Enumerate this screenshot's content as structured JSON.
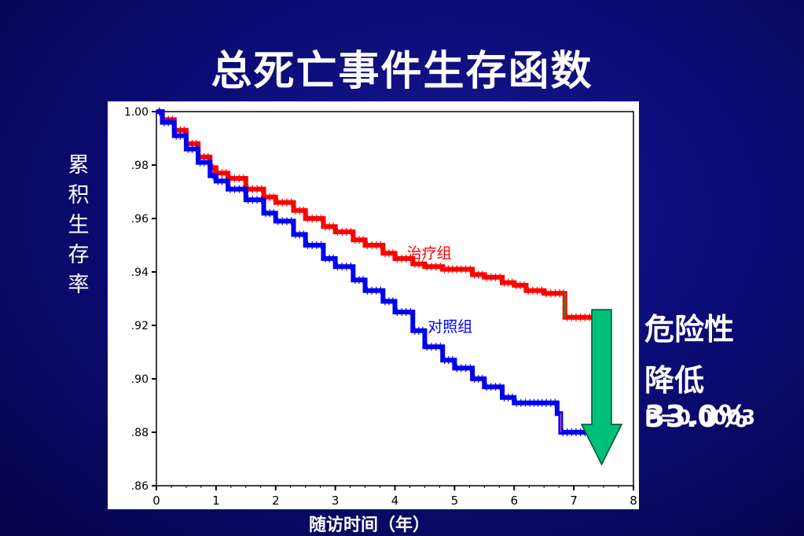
{
  "slide": {
    "title": "总死亡事件生存函数",
    "ylabel_chars": [
      "累",
      "积",
      "生",
      "存",
      "率"
    ],
    "xlabel": "随访时间（年）",
    "hazard_line1": "危险性",
    "hazard_line2": "降低33.0%",
    "p_value": "P=0.0003",
    "colors": {
      "background": "#0c0c78",
      "treatment": "#ff0000",
      "control": "#0000ee",
      "arrow": "#00c07a"
    },
    "icons": [
      "down-arrow-icon"
    ]
  },
  "chart_data": {
    "type": "line",
    "title": "",
    "xlabel": "随访时间（年）",
    "ylabel": "累积生存率",
    "xlim": [
      0,
      8
    ],
    "ylim": [
      0.86,
      1.0
    ],
    "xticks": [
      0,
      1,
      2,
      3,
      4,
      5,
      6,
      7,
      8
    ],
    "xtick_labels": [
      "0",
      "1",
      "2",
      "3",
      "4",
      "5",
      "6",
      "7",
      "8"
    ],
    "yticks": [
      0.86,
      0.88,
      0.9,
      0.92,
      0.94,
      0.96,
      0.98,
      1.0
    ],
    "ytick_labels": [
      ".86",
      ".88",
      ".90",
      ".92",
      ".94",
      ".96",
      ".98",
      "1.00"
    ],
    "grid": false,
    "series": [
      {
        "name": "治疗组",
        "color": "#ff0000",
        "x": [
          0,
          0.1,
          0.3,
          0.5,
          0.7,
          0.9,
          1.0,
          1.2,
          1.5,
          1.8,
          2.0,
          2.3,
          2.5,
          2.8,
          3.0,
          3.3,
          3.5,
          3.8,
          4.0,
          4.3,
          4.5,
          4.8,
          5.0,
          5.3,
          5.5,
          5.8,
          6.0,
          6.2,
          6.5,
          6.8,
          6.85,
          7.0,
          7.3
        ],
        "y": [
          1.0,
          0.997,
          0.993,
          0.988,
          0.983,
          0.979,
          0.977,
          0.975,
          0.971,
          0.968,
          0.966,
          0.963,
          0.96,
          0.957,
          0.955,
          0.952,
          0.95,
          0.947,
          0.945,
          0.943,
          0.942,
          0.941,
          0.941,
          0.939,
          0.938,
          0.936,
          0.935,
          0.933,
          0.932,
          0.932,
          0.923,
          0.923,
          0.923
        ]
      },
      {
        "name": "对照组",
        "color": "#0000ee",
        "x": [
          0,
          0.1,
          0.3,
          0.5,
          0.7,
          0.9,
          1.0,
          1.2,
          1.5,
          1.8,
          2.0,
          2.3,
          2.5,
          2.8,
          3.0,
          3.3,
          3.5,
          3.8,
          4.0,
          4.3,
          4.5,
          4.8,
          5.0,
          5.3,
          5.5,
          5.8,
          6.0,
          6.3,
          6.5,
          6.65,
          6.72,
          6.78,
          7.0,
          7.3
        ],
        "y": [
          1.0,
          0.996,
          0.991,
          0.986,
          0.981,
          0.976,
          0.974,
          0.971,
          0.967,
          0.962,
          0.959,
          0.954,
          0.95,
          0.945,
          0.942,
          0.937,
          0.933,
          0.929,
          0.925,
          0.918,
          0.912,
          0.907,
          0.904,
          0.9,
          0.897,
          0.893,
          0.891,
          0.891,
          0.891,
          0.891,
          0.887,
          0.88,
          0.88,
          0.88
        ]
      }
    ],
    "annotations": [
      {
        "text": "治疗组",
        "color": "#ff0000"
      },
      {
        "text": "对照组",
        "color": "#0000ee"
      }
    ]
  }
}
